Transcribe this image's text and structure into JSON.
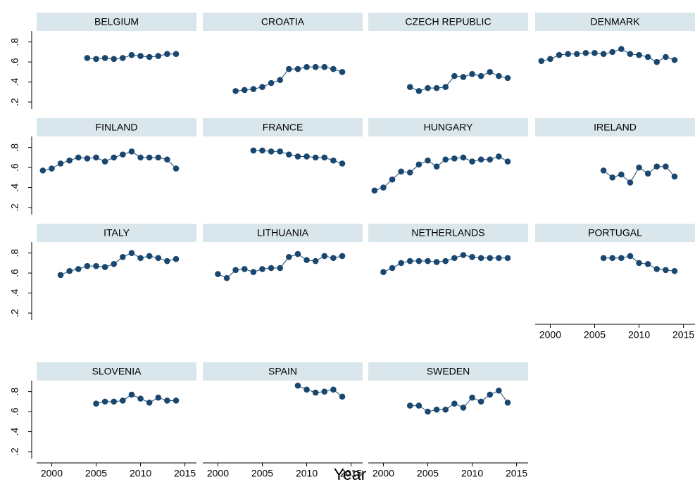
{
  "chart_data": {
    "type": "line",
    "x_label": "Year",
    "color": "#1a476f",
    "xlim": [
      1998.3,
      2016.3
    ],
    "xticks": [
      2000,
      2005,
      2010,
      2015
    ],
    "ylim": [
      0.13,
      0.91
    ],
    "yticks": [
      {
        "value": 0.2,
        "label": ".2"
      },
      {
        "value": 0.4,
        "label": ".4"
      },
      {
        "value": 0.6,
        "label": ".6"
      },
      {
        "value": 0.8,
        "label": ".8"
      }
    ],
    "panels": [
      {
        "title": "BELGIUM",
        "x": [
          2004,
          2005,
          2006,
          2007,
          2008,
          2009,
          2010,
          2011,
          2012,
          2013,
          2014
        ],
        "values": [
          0.64,
          0.63,
          0.64,
          0.63,
          0.64,
          0.67,
          0.66,
          0.65,
          0.66,
          0.68,
          0.68
        ]
      },
      {
        "title": "CROATIA",
        "x": [
          2002,
          2003,
          2004,
          2005,
          2006,
          2007,
          2008,
          2009,
          2010,
          2011,
          2012,
          2013,
          2014
        ],
        "values": [
          0.31,
          0.32,
          0.33,
          0.35,
          0.39,
          0.42,
          0.53,
          0.53,
          0.55,
          0.55,
          0.55,
          0.53,
          0.5
        ]
      },
      {
        "title": "CZECH REPUBLIC",
        "x": [
          2003,
          2004,
          2005,
          2006,
          2007,
          2008,
          2009,
          2010,
          2011,
          2012,
          2013,
          2014
        ],
        "values": [
          0.35,
          0.31,
          0.34,
          0.34,
          0.35,
          0.46,
          0.45,
          0.48,
          0.46,
          0.5,
          0.46,
          0.44
        ]
      },
      {
        "title": "DENMARK",
        "x": [
          1999,
          2000,
          2001,
          2002,
          2003,
          2004,
          2005,
          2006,
          2007,
          2008,
          2009,
          2010,
          2011,
          2012,
          2013,
          2014
        ],
        "values": [
          0.61,
          0.63,
          0.67,
          0.68,
          0.68,
          0.69,
          0.69,
          0.68,
          0.7,
          0.73,
          0.68,
          0.67,
          0.65,
          0.6,
          0.65,
          0.62
        ]
      },
      {
        "title": "FINLAND",
        "x": [
          1999,
          2000,
          2001,
          2002,
          2003,
          2004,
          2005,
          2006,
          2007,
          2008,
          2009,
          2010,
          2011,
          2012,
          2013,
          2014
        ],
        "values": [
          0.57,
          0.59,
          0.64,
          0.67,
          0.7,
          0.69,
          0.7,
          0.66,
          0.7,
          0.73,
          0.76,
          0.7,
          0.7,
          0.7,
          0.68,
          0.59
        ]
      },
      {
        "title": "FRANCE",
        "x": [
          2004,
          2005,
          2006,
          2007,
          2008,
          2009,
          2010,
          2011,
          2012,
          2013,
          2014
        ],
        "values": [
          0.77,
          0.77,
          0.76,
          0.76,
          0.73,
          0.71,
          0.71,
          0.7,
          0.7,
          0.67,
          0.64
        ]
      },
      {
        "title": "HUNGARY",
        "x": [
          1999,
          2000,
          2001,
          2002,
          2003,
          2004,
          2005,
          2006,
          2007,
          2008,
          2009,
          2010,
          2011,
          2012,
          2013,
          2014
        ],
        "values": [
          0.37,
          0.4,
          0.48,
          0.56,
          0.55,
          0.63,
          0.67,
          0.61,
          0.68,
          0.69,
          0.7,
          0.66,
          0.68,
          0.68,
          0.71,
          0.66
        ]
      },
      {
        "title": "IRELAND",
        "x": [
          2006,
          2007,
          2008,
          2009,
          2010,
          2011,
          2012,
          2013,
          2014
        ],
        "values": [
          0.57,
          0.5,
          0.53,
          0.45,
          0.6,
          0.54,
          0.61,
          0.61,
          0.51
        ]
      },
      {
        "title": "ITALY",
        "x": [
          2001,
          2002,
          2003,
          2004,
          2005,
          2006,
          2007,
          2008,
          2009,
          2010,
          2011,
          2012,
          2013,
          2014
        ],
        "values": [
          0.58,
          0.62,
          0.64,
          0.67,
          0.67,
          0.66,
          0.69,
          0.76,
          0.8,
          0.75,
          0.77,
          0.75,
          0.72,
          0.74
        ]
      },
      {
        "title": "LITHUANIA",
        "x": [
          2000,
          2001,
          2002,
          2003,
          2004,
          2005,
          2006,
          2007,
          2008,
          2009,
          2010,
          2011,
          2012,
          2013,
          2014
        ],
        "values": [
          0.59,
          0.55,
          0.63,
          0.64,
          0.61,
          0.64,
          0.65,
          0.65,
          0.76,
          0.79,
          0.73,
          0.72,
          0.77,
          0.75,
          0.77
        ]
      },
      {
        "title": "NETHERLANDS",
        "x": [
          2000,
          2001,
          2002,
          2003,
          2004,
          2005,
          2006,
          2007,
          2008,
          2009,
          2010,
          2011,
          2012,
          2013,
          2014
        ],
        "values": [
          0.61,
          0.65,
          0.7,
          0.72,
          0.72,
          0.72,
          0.71,
          0.72,
          0.75,
          0.78,
          0.76,
          0.75,
          0.75,
          0.75,
          0.75
        ]
      },
      {
        "title": "PORTUGAL",
        "x": [
          2006,
          2007,
          2008,
          2009,
          2010,
          2011,
          2012,
          2013,
          2014
        ],
        "values": [
          0.75,
          0.75,
          0.75,
          0.77,
          0.7,
          0.69,
          0.64,
          0.63,
          0.62
        ]
      },
      {
        "title": "SLOVENIA",
        "x": [
          2005,
          2006,
          2007,
          2008,
          2009,
          2010,
          2011,
          2012,
          2013,
          2014
        ],
        "values": [
          0.68,
          0.7,
          0.7,
          0.71,
          0.77,
          0.73,
          0.69,
          0.74,
          0.71,
          0.71
        ]
      },
      {
        "title": "SPAIN",
        "x": [
          2009,
          2010,
          2011,
          2012,
          2013,
          2014
        ],
        "values": [
          0.86,
          0.82,
          0.79,
          0.8,
          0.82,
          0.75
        ]
      },
      {
        "title": "SWEDEN",
        "x": [
          2003,
          2004,
          2005,
          2006,
          2007,
          2008,
          2009,
          2010,
          2011,
          2012,
          2013,
          2014
        ],
        "values": [
          0.66,
          0.66,
          0.6,
          0.62,
          0.62,
          0.68,
          0.64,
          0.74,
          0.7,
          0.77,
          0.81,
          0.69
        ]
      }
    ]
  }
}
